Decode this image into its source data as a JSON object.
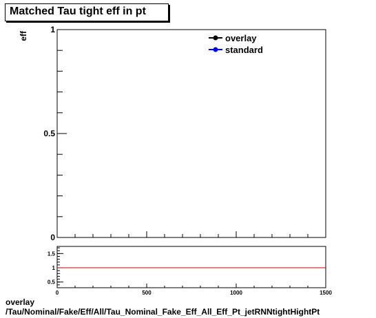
{
  "chart_data": [
    {
      "type": "line",
      "title": "Matched Tau tight eff in pt",
      "ylabel": "eff",
      "xlim": [
        0,
        1500
      ],
      "ylim": [
        0,
        1
      ],
      "y_ticks": [
        {
          "value": 0,
          "label": "0"
        },
        {
          "value": 0.5,
          "label": "0.5"
        },
        {
          "value": 1,
          "label": "1"
        }
      ],
      "legend_position": "top-right",
      "series": [
        {
          "name": "overlay",
          "color": "#000000",
          "values": []
        },
        {
          "name": "standard",
          "color": "#0000ff",
          "values": []
        }
      ]
    },
    {
      "type": "line",
      "xlim": [
        0,
        1500
      ],
      "ylim": [
        0.3,
        1.75
      ],
      "x_ticks": [
        {
          "value": 0,
          "label": "0"
        },
        {
          "value": 500,
          "label": "500"
        },
        {
          "value": 1000,
          "label": "1000"
        },
        {
          "value": 1500,
          "label": "1500"
        }
      ],
      "y_ticks": [
        {
          "value": 0.5,
          "label": "0.5"
        },
        {
          "value": 1,
          "label": "1"
        },
        {
          "value": 1.5,
          "label": "1.5"
        }
      ],
      "reference_line": {
        "y": 1,
        "color": "#cc0000"
      }
    }
  ],
  "footer": {
    "line1": "overlay",
    "line2": "/Tau/Nominal/Fake/Eff/All/Tau_Nominal_Fake_Eff_All_Eff_Pt_jetRNNtightHightPt"
  }
}
